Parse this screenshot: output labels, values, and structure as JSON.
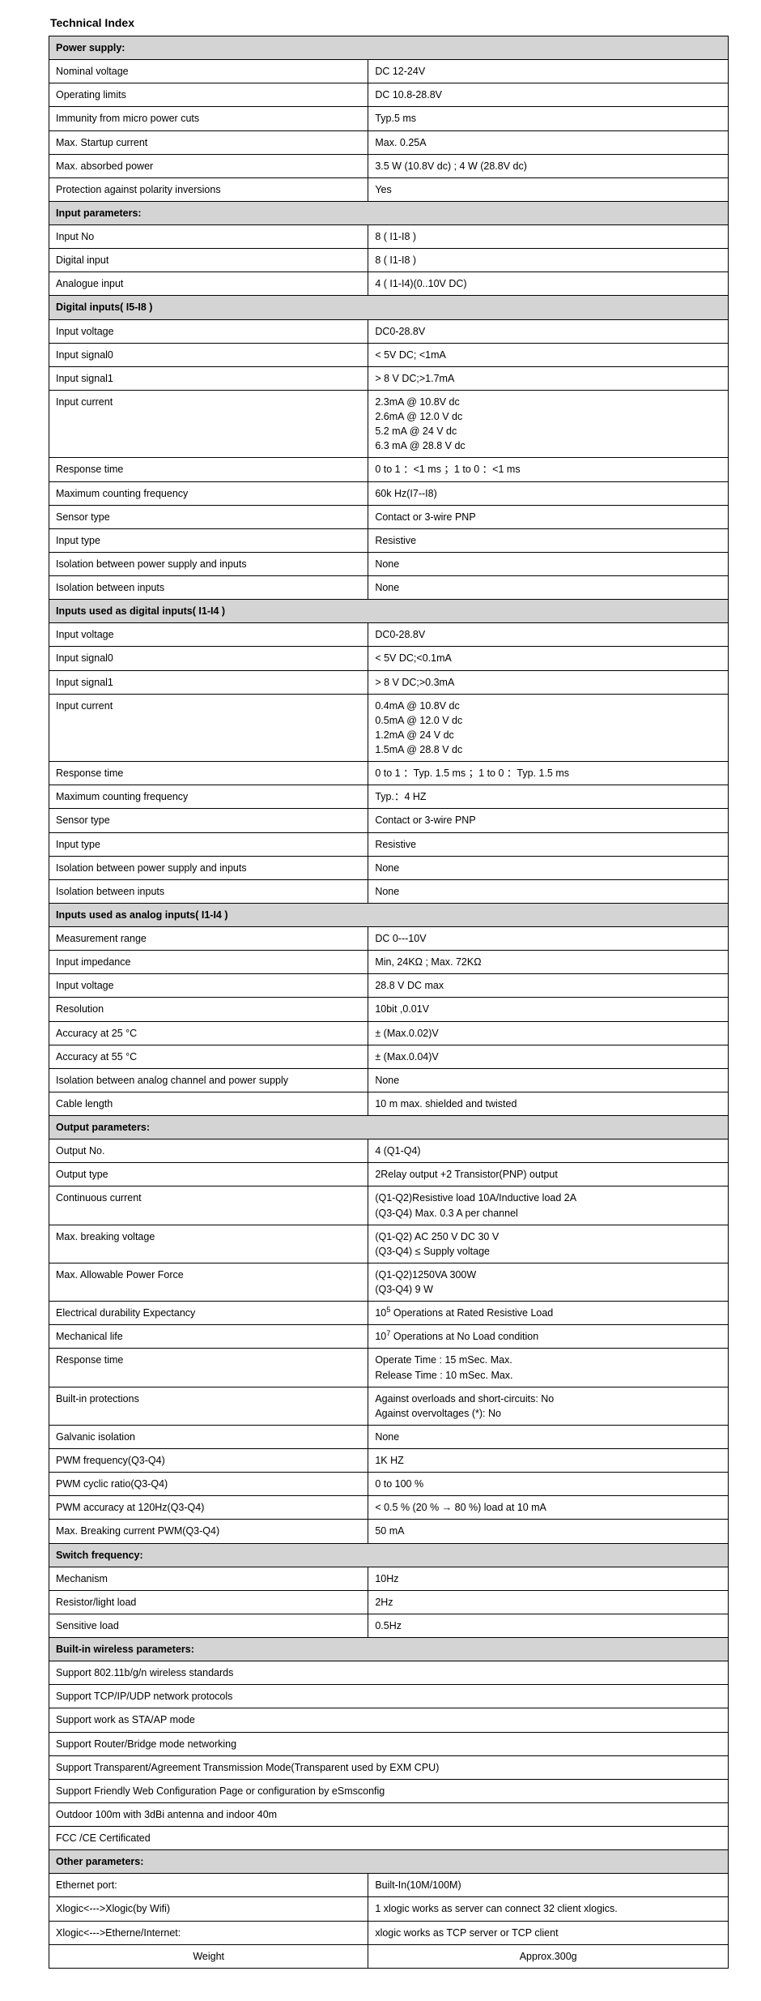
{
  "title": "Technical Index",
  "colors": {
    "border": "#000000",
    "section_bg": "#d4d4d4",
    "cell_bg": "#ffffff",
    "page_bg": "#ffffff",
    "text": "#000000"
  },
  "layout": {
    "left_col_pct": 47,
    "right_col_pct": 53
  },
  "rows": [
    {
      "type": "section",
      "label": "Power supply:"
    },
    {
      "type": "pair",
      "label": "Nominal voltage",
      "value": "DC 12-24V"
    },
    {
      "type": "pair",
      "label": "Operating limits",
      "value": "DC 10.8-28.8V"
    },
    {
      "type": "pair",
      "label": "Immunity from micro power cuts",
      "value": "Typ.5 ms"
    },
    {
      "type": "pair",
      "label": "Max. Startup current",
      "value": "Max. 0.25A"
    },
    {
      "type": "pair",
      "label": "Max. absorbed power",
      "value": "3.5 W (10.8V dc) ; 4 W (28.8V dc)"
    },
    {
      "type": "pair",
      "label": "Protection against polarity inversions",
      "value": "Yes"
    },
    {
      "type": "section",
      "label": "Input parameters:"
    },
    {
      "type": "pair",
      "label": "Input No",
      "value": "8 ( I1-I8 )"
    },
    {
      "type": "pair",
      "label": "Digital input",
      "value": "8 ( I1-I8 )"
    },
    {
      "type": "pair",
      "label": "Analogue input",
      "value": "4 ( I1-I4)(0..10V DC)"
    },
    {
      "type": "section",
      "label": "Digital inputs( I5-I8 )"
    },
    {
      "type": "pair",
      "label": "Input voltage",
      "value": "DC0-28.8V"
    },
    {
      "type": "pair",
      "label": "Input signal0",
      "value": "< 5V DC; <1mA"
    },
    {
      "type": "pair",
      "label": "Input signal1",
      "value": "> 8 V DC;>1.7mA"
    },
    {
      "type": "pair",
      "label": "Input current",
      "value": "2.3mA @ 10.8V dc\n2.6mA @ 12.0 V dc\n5.2 mA @ 24 V dc\n6.3 mA @ 28.8 V dc"
    },
    {
      "type": "pair",
      "label": "Response time",
      "value": "0 to 1 ：<1 ms ；1 to 0 ：<1 ms"
    },
    {
      "type": "pair",
      "label": "Maximum counting frequency",
      "value": "60k Hz(I7--I8)"
    },
    {
      "type": "pair",
      "label": "Sensor type",
      "value": "Contact or 3-wire PNP"
    },
    {
      "type": "pair",
      "label": "Input type",
      "value": "Resistive"
    },
    {
      "type": "pair",
      "label": "Isolation between power supply and inputs",
      "value": "None"
    },
    {
      "type": "pair",
      "label": "Isolation between inputs",
      "value": "None"
    },
    {
      "type": "section",
      "label": "Inputs used as digital inputs( I1-I4 )"
    },
    {
      "type": "pair",
      "label": "Input voltage",
      "value": "DC0-28.8V"
    },
    {
      "type": "pair",
      "label": "Input signal0",
      "value": "< 5V DC;<0.1mA"
    },
    {
      "type": "pair",
      "label": "Input signal1",
      "value": "> 8 V DC;>0.3mA"
    },
    {
      "type": "pair",
      "label": "Input current",
      "value": "0.4mA @ 10.8V dc\n0.5mA @ 12.0 V dc\n1.2mA @ 24 V dc\n1.5mA @ 28.8 V dc"
    },
    {
      "type": "pair",
      "label": "Response time",
      "value": "0 to 1 ：Typ. 1.5 ms ；1 to 0 ：Typ. 1.5 ms"
    },
    {
      "type": "pair",
      "label": "Maximum counting frequency",
      "value": "Typ.：4 HZ"
    },
    {
      "type": "pair",
      "label": "Sensor type",
      "value": "Contact or 3-wire PNP"
    },
    {
      "type": "pair",
      "label": "Input type",
      "value": "Resistive"
    },
    {
      "type": "pair",
      "label": "Isolation between power supply and inputs",
      "value": "None"
    },
    {
      "type": "pair",
      "label": "Isolation between inputs",
      "value": "None"
    },
    {
      "type": "section",
      "label": "Inputs used as analog inputs( I1-I4 )"
    },
    {
      "type": "pair",
      "label": "Measurement range",
      "value": "DC 0---10V"
    },
    {
      "type": "pair",
      "label": "Input impedance",
      "value": "Min, 24KΩ ; Max. 72KΩ"
    },
    {
      "type": "pair",
      "label": "Input voltage",
      "value": "28.8 V DC max"
    },
    {
      "type": "pair",
      "label": "Resolution",
      "value": "10bit ,0.01V"
    },
    {
      "type": "pair",
      "label": "Accuracy at 25 °C",
      "value": "± (Max.0.02)V"
    },
    {
      "type": "pair",
      "label": "Accuracy at 55 °C",
      "value": "± (Max.0.04)V"
    },
    {
      "type": "pair",
      "label": "Isolation between analog channel and power supply",
      "value": "None"
    },
    {
      "type": "pair",
      "label": "Cable length",
      "value": "10 m max.   shielded and twisted"
    },
    {
      "type": "section",
      "label": "Output parameters:"
    },
    {
      "type": "pair",
      "label": "Output No.",
      "value": "4 (Q1-Q4)"
    },
    {
      "type": "pair",
      "label": "Output type",
      "value": "2Relay output +2 Transistor(PNP) output"
    },
    {
      "type": "pair",
      "label": "Continuous current",
      "value": "(Q1-Q2)Resistive load 10A/Inductive load 2A\n(Q3-Q4) Max. 0.3 A per channel"
    },
    {
      "type": "pair",
      "label": "Max. breaking voltage",
      "value": "(Q1-Q2) AC 250 V DC 30 V\n(Q3-Q4) ≤ Supply voltage"
    },
    {
      "type": "pair",
      "label": "Max. Allowable Power Force",
      "value": "(Q1-Q2)1250VA 300W\n(Q3-Q4) 9 W"
    },
    {
      "type": "pair",
      "label": "Electrical durability Expectancy",
      "value_html": "10<sup>5</sup> Operations at Rated Resistive Load"
    },
    {
      "type": "pair",
      "label": "Mechanical life",
      "value_html": "10<sup>7</sup> Operations at No Load condition"
    },
    {
      "type": "pair",
      "label": "Response time",
      "value": "Operate Time : 15 mSec. Max.\nRelease Time : 10 mSec. Max."
    },
    {
      "type": "pair",
      "label": "Built-in protections",
      "value": "Against overloads and short-circuits: No\nAgainst overvoltages (*): No"
    },
    {
      "type": "pair",
      "label": "Galvanic isolation",
      "value": "None"
    },
    {
      "type": "pair",
      "label": "PWM frequency(Q3-Q4)",
      "value": "1K HZ"
    },
    {
      "type": "pair",
      "label": "PWM cyclic ratio(Q3-Q4)",
      "value": "0   to 100 %"
    },
    {
      "type": "pair",
      "label": "PWM accuracy at 120Hz(Q3-Q4)",
      "value": "< 0.5 % (20 % → 80 %) load at 10 mA"
    },
    {
      "type": "pair",
      "label": "Max. Breaking current PWM(Q3-Q4)",
      "value": "50 mA"
    },
    {
      "type": "section",
      "label": "Switch frequency:"
    },
    {
      "type": "pair",
      "label": "Mechanism",
      "value": "10Hz"
    },
    {
      "type": "pair",
      "label": "Resistor/light load",
      "value": "2Hz"
    },
    {
      "type": "pair",
      "label": "Sensitive load",
      "value": "0.5Hz"
    },
    {
      "type": "section",
      "label": "Built-in wireless parameters:"
    },
    {
      "type": "full",
      "label": "Support 802.11b/g/n wireless standards"
    },
    {
      "type": "full",
      "label": "Support  TCP/IP/UDP network protocols"
    },
    {
      "type": "full",
      "label": "Support work as STA/AP mode"
    },
    {
      "type": "full",
      "label": "Support Router/Bridge mode networking"
    },
    {
      "type": "full",
      "label": "Support Transparent/Agreement Transmission Mode(Transparent used by EXM CPU)"
    },
    {
      "type": "full",
      "label": "Support Friendly Web Configuration Page or configuration by eSmsconfig"
    },
    {
      "type": "full",
      "label": "Outdoor 100m with 3dBi antenna and indoor 40m"
    },
    {
      "type": "full",
      "label": "FCC /CE Certificated"
    },
    {
      "type": "section",
      "label": "Other parameters:"
    },
    {
      "type": "pair",
      "label": "Ethernet port:",
      "value": "Built-In(10M/100M)"
    },
    {
      "type": "pair",
      "label": "Xlogic<--->Xlogic(by Wifi)",
      "value": "1 xlogic works as server can connect 32 client xlogics."
    },
    {
      "type": "pair",
      "label": "Xlogic<--->Etherne/Internet:",
      "value": "xlogic works as TCP server or TCP client"
    },
    {
      "type": "pair",
      "label": "Weight",
      "value": "Approx.300g",
      "center": true
    }
  ]
}
